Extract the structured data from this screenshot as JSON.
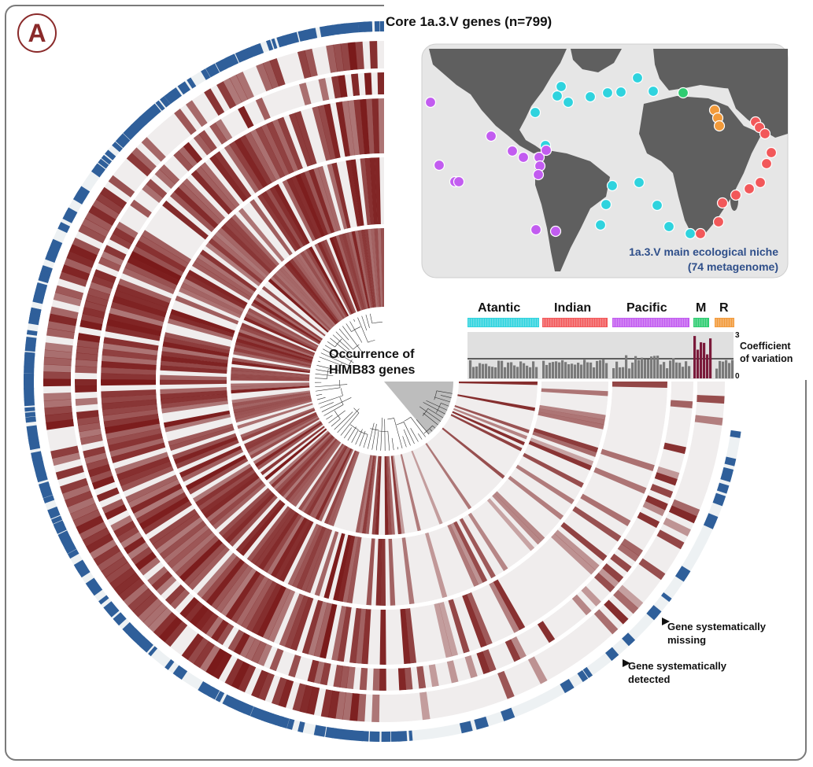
{
  "panel_letter": "A",
  "title": "Core 1a.3.V genes (n=799)",
  "center_label_line1": "Occurrence of",
  "center_label_line2": "HIMB83 genes",
  "map": {
    "caption_line1": "1a.3.V main ecological niche",
    "caption_line2": "(74 metagenome)"
  },
  "regions": [
    {
      "label": "Atantic",
      "color": "#2fd3de"
    },
    {
      "label": "Indian",
      "color": "#f2585a"
    },
    {
      "label": "Pacific",
      "color": "#c25cf0"
    },
    {
      "label": "M",
      "color": "#2ecc71"
    },
    {
      "label": "R",
      "color": "#f29a3a"
    }
  ],
  "cv": {
    "label_line1": "Coefficient",
    "label_line2": "of variation",
    "tick_max": "3",
    "tick_min": "0"
  },
  "annotations": {
    "missing_line1": "Gene systematically",
    "missing_line2": "missing",
    "detected_line1": "Gene systematically",
    "detected_line2": "detected"
  },
  "colors": {
    "heat": "#7a1a1a",
    "gene_bar": "#2f5f9a",
    "map_land": "#5f5f5f",
    "map_sea": "#e6e6e6"
  }
}
